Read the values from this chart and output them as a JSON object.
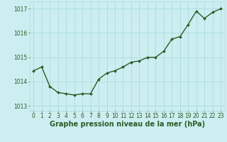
{
  "x": [
    0,
    1,
    2,
    3,
    4,
    5,
    6,
    7,
    8,
    9,
    10,
    11,
    12,
    13,
    14,
    15,
    16,
    17,
    18,
    19,
    20,
    21,
    22,
    23
  ],
  "y": [
    1014.45,
    1014.6,
    1013.8,
    1013.55,
    1013.5,
    1013.45,
    1013.5,
    1013.5,
    1014.1,
    1014.35,
    1014.45,
    1014.6,
    1014.8,
    1014.85,
    1015.0,
    1015.0,
    1015.25,
    1015.75,
    1015.85,
    1016.35,
    1016.9,
    1016.6,
    1016.85,
    1017.0
  ],
  "line_color": "#2d5a27",
  "marker": "D",
  "marker_size": 2.0,
  "background_color": "#cceef0",
  "grid_color": "#aadddd",
  "xlabel": "Graphe pression niveau de la mer (hPa)",
  "xlabel_color": "#2d5a27",
  "tick_color": "#2d5a27",
  "ylabel_ticks": [
    1013,
    1014,
    1015,
    1016,
    1017
  ],
  "ylim": [
    1012.8,
    1017.3
  ],
  "xlim": [
    -0.5,
    23.5
  ],
  "xtick_labels": [
    "0",
    "1",
    "2",
    "3",
    "4",
    "5",
    "6",
    "7",
    "8",
    "9",
    "10",
    "11",
    "12",
    "13",
    "14",
    "15",
    "16",
    "17",
    "18",
    "19",
    "20",
    "21",
    "22",
    "23"
  ],
  "line_width": 1.0,
  "tick_fontsize": 5.5,
  "xlabel_fontsize": 7.0,
  "xlabel_fontweight": "bold"
}
